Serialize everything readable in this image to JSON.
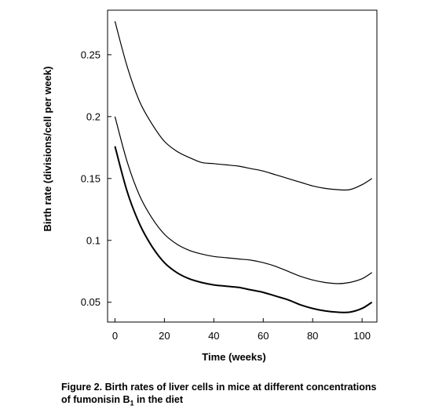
{
  "chart_data": {
    "type": "line",
    "xlabel": "Time (weeks)",
    "ylabel": "Birth rate (divisions/cell per week)",
    "xlim": [
      -3,
      106
    ],
    "ylim": [
      0.034,
      0.286
    ],
    "xticks": [
      "0",
      "20",
      "40",
      "60",
      "80",
      "100"
    ],
    "xtick_values": [
      0,
      20,
      40,
      60,
      80,
      100
    ],
    "yticks": [
      "0.05",
      "0.1",
      "0.15",
      "0.2",
      "0.25"
    ],
    "ytick_values": [
      0.05,
      0.1,
      0.15,
      0.2,
      0.25
    ],
    "grid": false,
    "series": [
      {
        "x": [
          0,
          5,
          10,
          15,
          20,
          25,
          30,
          35,
          40,
          45,
          50,
          55,
          60,
          65,
          70,
          75,
          80,
          85,
          90,
          95,
          100,
          104
        ],
        "values": [
          0.277,
          0.24,
          0.212,
          0.194,
          0.18,
          0.172,
          0.167,
          0.163,
          0.162,
          0.161,
          0.16,
          0.158,
          0.156,
          0.153,
          0.15,
          0.147,
          0.144,
          0.142,
          0.141,
          0.141,
          0.145,
          0.15
        ]
      },
      {
        "x": [
          0,
          5,
          10,
          15,
          20,
          25,
          30,
          35,
          40,
          45,
          50,
          55,
          60,
          65,
          70,
          75,
          80,
          85,
          90,
          95,
          100,
          104
        ],
        "values": [
          0.2,
          0.163,
          0.136,
          0.118,
          0.105,
          0.097,
          0.092,
          0.089,
          0.087,
          0.086,
          0.085,
          0.084,
          0.082,
          0.079,
          0.075,
          0.071,
          0.068,
          0.066,
          0.065,
          0.066,
          0.069,
          0.074
        ]
      },
      {
        "x": [
          0,
          5,
          10,
          15,
          20,
          25,
          30,
          35,
          40,
          45,
          50,
          55,
          60,
          65,
          70,
          75,
          80,
          85,
          90,
          95,
          100,
          104
        ],
        "values": [
          0.176,
          0.139,
          0.113,
          0.095,
          0.082,
          0.074,
          0.069,
          0.066,
          0.064,
          0.063,
          0.062,
          0.06,
          0.058,
          0.055,
          0.052,
          0.048,
          0.045,
          0.043,
          0.042,
          0.042,
          0.045,
          0.05
        ]
      }
    ]
  },
  "caption": {
    "line1": "Figure 2.  Birth rates of liver cells in mice at different concentrations",
    "line2_before": "of fumonisin B",
    "line2_sub": "1",
    "line2_after": " in the diet"
  },
  "colors": {
    "line": "#000000",
    "frame": "#000000"
  }
}
